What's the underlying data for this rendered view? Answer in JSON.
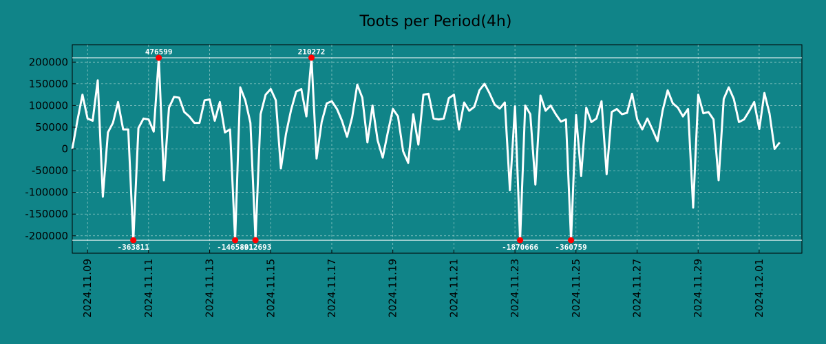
{
  "chart_data": {
    "type": "line",
    "title": "Toots per Period(4h)",
    "xlabel": "",
    "ylabel": "",
    "ylim": [
      -240000,
      240000
    ],
    "xlim": [
      0,
      23.9
    ],
    "x_unit": "days since 2024-11-08 12:00",
    "grid": true,
    "yticks": [
      -200000,
      -150000,
      -100000,
      -50000,
      0,
      50000,
      100000,
      150000,
      200000
    ],
    "ytick_labels": [
      "-200000",
      "-150000",
      "-100000",
      "-50000",
      "0",
      "50000",
      "100000",
      "150000",
      "200000"
    ],
    "xticks": [
      0.5,
      2.5,
      4.5,
      6.5,
      8.5,
      10.5,
      12.5,
      14.5,
      16.5,
      18.5,
      20.5,
      22.5
    ],
    "xtick_labels": [
      "2024.11.09",
      "2024.11.11",
      "2024.11.13",
      "2024.11.15",
      "2024.11.17",
      "2024.11.19",
      "2024.11.21",
      "2024.11.23",
      "2024.11.25",
      "2024.11.27",
      "2024.11.29",
      "2024.12.01"
    ],
    "clip_lines": [
      210000,
      -210000
    ],
    "colors": {
      "background": "#108488",
      "line": "#ffffff",
      "marker": "#ff0000",
      "grid": "#9fd0cd"
    },
    "series": [
      {
        "name": "toots",
        "step_days": 0.1667,
        "values": [
          0,
          65000,
          125000,
          70000,
          65000,
          158000,
          -110000,
          38000,
          60000,
          108000,
          45000,
          45000,
          -210000,
          48000,
          70000,
          68000,
          40000,
          210000,
          -72000,
          95000,
          120000,
          118000,
          85000,
          75000,
          60000,
          60000,
          112000,
          114000,
          65000,
          108000,
          38000,
          45000,
          -210000,
          142000,
          112000,
          60000,
          -210000,
          80000,
          125000,
          138000,
          112000,
          -45000,
          35000,
          90000,
          132000,
          138000,
          75000,
          210000,
          -22000,
          62000,
          105000,
          110000,
          92000,
          65000,
          28000,
          73000,
          148000,
          118000,
          15000,
          100000,
          20000,
          -20000,
          38000,
          92000,
          75000,
          -5000,
          -32000,
          80000,
          10000,
          125000,
          127000,
          70000,
          68000,
          70000,
          117000,
          125000,
          45000,
          107000,
          88000,
          97000,
          135000,
          150000,
          128000,
          102000,
          93000,
          107000,
          -95000,
          98000,
          -210000,
          100000,
          80000,
          -82000,
          123000,
          88000,
          100000,
          80000,
          63000,
          68000,
          -210000,
          78000,
          -62000,
          95000,
          62000,
          70000,
          110000,
          -58000,
          85000,
          92000,
          80000,
          83000,
          127000,
          68000,
          45000,
          70000,
          45000,
          18000,
          88000,
          135000,
          105000,
          95000,
          75000,
          92000,
          -135000,
          125000,
          82000,
          85000,
          68000,
          -72000,
          115000,
          142000,
          115000,
          62000,
          68000,
          87000,
          108000,
          46000,
          129000,
          82000,
          0,
          15000
        ]
      }
    ],
    "annotations": [
      {
        "index": 12,
        "y": -210000,
        "label": "-363811"
      },
      {
        "index": 17,
        "y": 210000,
        "label": "476599"
      },
      {
        "index": 32,
        "y": -210000,
        "label": "-1465801"
      },
      {
        "index": 36,
        "y": -210000,
        "label": "-912693"
      },
      {
        "index": 47,
        "y": 210272,
        "label": "210272"
      },
      {
        "index": 88,
        "y": -210000,
        "label": "-1870666"
      },
      {
        "index": 98,
        "y": -210000,
        "label": "-360759"
      }
    ]
  }
}
